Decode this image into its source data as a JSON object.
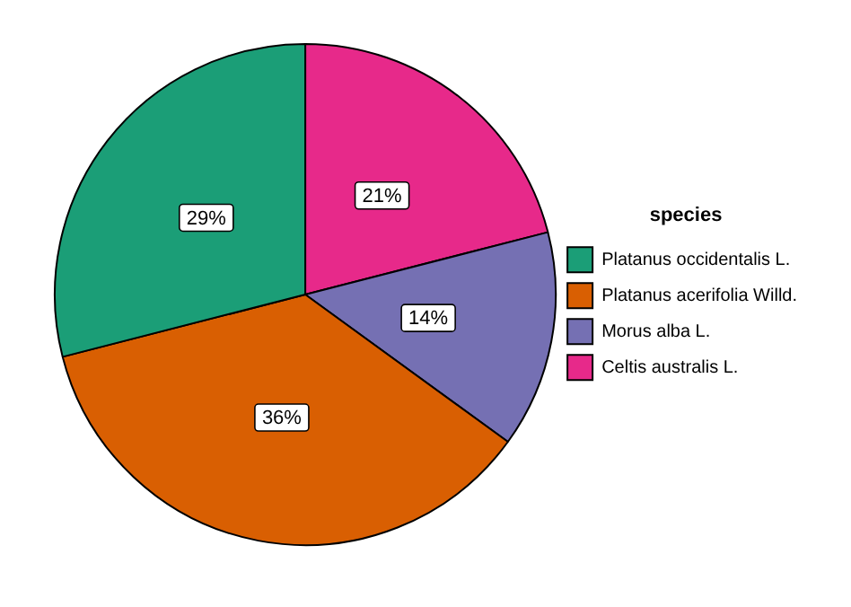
{
  "chart_data": {
    "type": "pie",
    "legend_title": "species",
    "categories": [
      "Platanus occidentalis L.",
      "Platanus acerifolia Willd.",
      "Morus alba L.",
      "Celtis australis L."
    ],
    "values": [
      29,
      36,
      14,
      21
    ],
    "colors": [
      "#1b9e77",
      "#d95f02",
      "#7570b3",
      "#e7298a"
    ],
    "value_labels": [
      "29%",
      "36%",
      "14%",
      "21%"
    ],
    "legend": "right"
  }
}
